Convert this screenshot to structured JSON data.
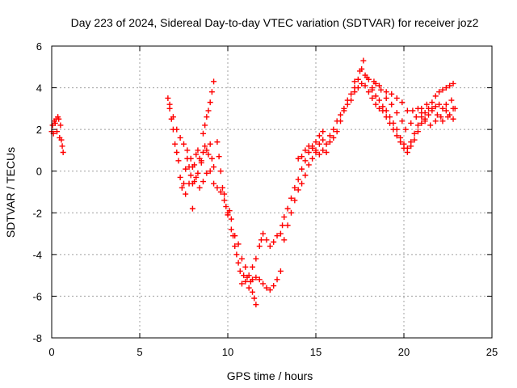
{
  "chart_data": {
    "type": "scatter",
    "title": "Day 223 of 2024, Sidereal Day-to-day VTEC variation (SDTVAR) for receiver joz2",
    "xlabel": "GPS time / hours",
    "ylabel": "SDTVAR / TECUs",
    "xlim": [
      0,
      25
    ],
    "ylim": [
      -8,
      6
    ],
    "x_ticks": [
      0,
      5,
      10,
      15,
      20,
      25
    ],
    "y_ticks": [
      -8,
      -6,
      -4,
      -2,
      0,
      2,
      4,
      6
    ],
    "grid": true,
    "marker": "+",
    "color": "#ff0000",
    "series": [
      {
        "name": "SDTVAR",
        "points": [
          [
            0.0,
            1.9
          ],
          [
            0.05,
            2.2
          ],
          [
            0.1,
            1.8
          ],
          [
            0.15,
            2.4
          ],
          [
            0.2,
            2.3
          ],
          [
            0.25,
            2.5
          ],
          [
            0.3,
            1.9
          ],
          [
            0.35,
            2.6
          ],
          [
            0.4,
            2.5
          ],
          [
            0.45,
            1.6
          ],
          [
            0.5,
            2.2
          ],
          [
            0.55,
            1.5
          ],
          [
            0.6,
            1.2
          ],
          [
            0.65,
            0.9
          ],
          [
            6.6,
            3.5
          ],
          [
            6.7,
            3.2
          ],
          [
            6.8,
            2.5
          ],
          [
            6.9,
            2.0
          ],
          [
            7.0,
            1.3
          ],
          [
            7.1,
            0.9
          ],
          [
            7.2,
            0.5
          ],
          [
            7.3,
            -0.3
          ],
          [
            7.4,
            -0.8
          ],
          [
            7.5,
            -0.6
          ],
          [
            7.6,
            0.1
          ],
          [
            7.7,
            0.6
          ],
          [
            7.8,
            0.2
          ],
          [
            7.9,
            -0.2
          ],
          [
            8.0,
            -0.6
          ],
          [
            8.1,
            0.3
          ],
          [
            8.2,
            0.8
          ],
          [
            8.3,
            1.0
          ],
          [
            8.4,
            0.6
          ],
          [
            8.5,
            0.4
          ],
          [
            8.6,
            0.9
          ],
          [
            8.7,
            1.2
          ],
          [
            8.8,
            1.0
          ],
          [
            8.9,
            0.8
          ],
          [
            9.0,
            1.3
          ],
          [
            9.1,
            0.6
          ],
          [
            9.2,
            0.2
          ],
          [
            6.7,
            3.0
          ],
          [
            6.9,
            2.6
          ],
          [
            7.1,
            2.0
          ],
          [
            7.3,
            1.6
          ],
          [
            7.5,
            1.3
          ],
          [
            7.7,
            1.0
          ],
          [
            7.9,
            0.6
          ],
          [
            8.0,
            0.2
          ],
          [
            8.2,
            -0.3
          ],
          [
            8.4,
            -0.8
          ],
          [
            8.6,
            -0.5
          ],
          [
            8.8,
            -0.1
          ],
          [
            9.0,
            0.0
          ],
          [
            9.2,
            -0.6
          ],
          [
            9.4,
            -0.8
          ],
          [
            7.6,
            -1.1
          ],
          [
            7.8,
            -0.6
          ],
          [
            8.0,
            -1.8
          ],
          [
            8.1,
            -0.5
          ],
          [
            8.3,
            -0.1
          ],
          [
            8.5,
            0.5
          ],
          [
            8.6,
            1.8
          ],
          [
            8.7,
            2.2
          ],
          [
            8.8,
            2.6
          ],
          [
            8.9,
            2.9
          ],
          [
            9.0,
            3.3
          ],
          [
            9.1,
            3.8
          ],
          [
            9.2,
            4.3
          ],
          [
            9.4,
            1.4
          ],
          [
            9.5,
            0.7
          ],
          [
            9.6,
            0.0
          ],
          [
            9.7,
            -0.8
          ],
          [
            9.8,
            -1.1
          ],
          [
            9.9,
            -1.7
          ],
          [
            10.0,
            -2.0
          ],
          [
            10.1,
            -1.9
          ],
          [
            10.2,
            -2.3
          ],
          [
            10.3,
            -3.1
          ],
          [
            10.4,
            -3.6
          ],
          [
            10.5,
            -4.0
          ],
          [
            10.6,
            -4.4
          ],
          [
            10.7,
            -4.8
          ],
          [
            10.8,
            -5.4
          ],
          [
            10.9,
            -5.0
          ],
          [
            11.0,
            -5.3
          ],
          [
            11.1,
            -5.1
          ],
          [
            11.2,
            -5.6
          ],
          [
            11.3,
            -5.3
          ],
          [
            11.4,
            -5.8
          ],
          [
            11.5,
            -6.1
          ],
          [
            11.6,
            -6.4
          ],
          [
            9.6,
            -1.0
          ],
          [
            9.8,
            -1.4
          ],
          [
            10.0,
            -2.1
          ],
          [
            10.2,
            -2.8
          ],
          [
            10.4,
            -3.1
          ],
          [
            10.6,
            -3.5
          ],
          [
            10.8,
            -4.2
          ],
          [
            11.0,
            -4.6
          ],
          [
            11.2,
            -5.0
          ],
          [
            11.4,
            -5.2
          ],
          [
            11.6,
            -5.1
          ],
          [
            11.8,
            -5.2
          ],
          [
            12.0,
            -5.4
          ],
          [
            12.2,
            -5.6
          ],
          [
            12.4,
            -5.7
          ],
          [
            12.6,
            -5.5
          ],
          [
            12.8,
            -5.2
          ],
          [
            13.0,
            -4.8
          ],
          [
            11.4,
            -4.6
          ],
          [
            11.6,
            -4.2
          ],
          [
            11.8,
            -3.6
          ],
          [
            11.9,
            -3.3
          ],
          [
            12.0,
            -3.0
          ],
          [
            12.2,
            -3.3
          ],
          [
            12.4,
            -3.6
          ],
          [
            12.6,
            -3.4
          ],
          [
            12.8,
            -3.1
          ],
          [
            13.0,
            -3.0
          ],
          [
            13.1,
            -2.6
          ],
          [
            13.2,
            -2.2
          ],
          [
            13.4,
            -1.8
          ],
          [
            13.6,
            -1.3
          ],
          [
            13.8,
            -0.8
          ],
          [
            14.0,
            -0.4
          ],
          [
            14.2,
            0.1
          ],
          [
            14.4,
            0.5
          ],
          [
            14.6,
            0.9
          ],
          [
            14.8,
            1.2
          ],
          [
            15.0,
            1.4
          ],
          [
            15.2,
            1.7
          ],
          [
            15.4,
            1.9
          ],
          [
            13.2,
            -3.3
          ],
          [
            13.4,
            -2.6
          ],
          [
            13.6,
            -2.0
          ],
          [
            13.8,
            -1.4
          ],
          [
            14.0,
            -0.9
          ],
          [
            14.2,
            -0.6
          ],
          [
            14.4,
            -0.2
          ],
          [
            14.6,
            0.3
          ],
          [
            14.8,
            0.6
          ],
          [
            15.0,
            1.0
          ],
          [
            14.0,
            0.6
          ],
          [
            14.2,
            0.7
          ],
          [
            14.4,
            1.0
          ],
          [
            14.6,
            1.2
          ],
          [
            14.8,
            1.1
          ],
          [
            15.0,
            0.9
          ],
          [
            15.2,
            1.3
          ],
          [
            15.4,
            1.5
          ],
          [
            15.6,
            1.3
          ],
          [
            15.8,
            1.7
          ],
          [
            16.0,
            2.0
          ],
          [
            16.2,
            2.4
          ],
          [
            16.4,
            2.7
          ],
          [
            16.6,
            3.0
          ],
          [
            16.8,
            3.4
          ],
          [
            17.0,
            3.7
          ],
          [
            17.2,
            4.0
          ],
          [
            17.4,
            4.4
          ],
          [
            17.6,
            4.9
          ],
          [
            17.7,
            5.3
          ],
          [
            17.8,
            4.6
          ],
          [
            18.0,
            4.4
          ],
          [
            18.2,
            4.0
          ],
          [
            18.4,
            3.6
          ],
          [
            18.6,
            3.4
          ],
          [
            18.8,
            3.1
          ],
          [
            19.0,
            2.9
          ],
          [
            19.2,
            2.6
          ],
          [
            19.4,
            2.3
          ],
          [
            19.6,
            2.0
          ],
          [
            19.8,
            1.6
          ],
          [
            20.0,
            1.3
          ],
          [
            20.2,
            1.1
          ],
          [
            20.4,
            1.4
          ],
          [
            20.6,
            1.8
          ],
          [
            20.8,
            2.2
          ],
          [
            21.0,
            2.6
          ],
          [
            21.2,
            2.8
          ],
          [
            21.4,
            3.0
          ],
          [
            21.6,
            3.3
          ],
          [
            21.8,
            3.6
          ],
          [
            22.0,
            3.8
          ],
          [
            22.2,
            3.9
          ],
          [
            22.4,
            4.0
          ],
          [
            22.6,
            4.1
          ],
          [
            22.8,
            4.2
          ],
          [
            15.2,
            0.8
          ],
          [
            15.4,
            1.0
          ],
          [
            15.6,
            0.9
          ],
          [
            15.8,
            1.4
          ],
          [
            16.0,
            1.6
          ],
          [
            16.2,
            1.9
          ],
          [
            16.4,
            2.4
          ],
          [
            16.6,
            2.9
          ],
          [
            16.8,
            3.2
          ],
          [
            17.0,
            3.4
          ],
          [
            17.2,
            3.8
          ],
          [
            17.4,
            4.0
          ],
          [
            17.6,
            4.2
          ],
          [
            17.8,
            4.1
          ],
          [
            18.0,
            3.8
          ],
          [
            18.2,
            3.5
          ],
          [
            18.4,
            3.2
          ],
          [
            18.6,
            3.0
          ],
          [
            18.8,
            2.9
          ],
          [
            19.0,
            2.6
          ],
          [
            19.2,
            2.3
          ],
          [
            19.4,
            2.0
          ],
          [
            19.6,
            1.7
          ],
          [
            19.8,
            1.4
          ],
          [
            20.0,
            1.1
          ],
          [
            20.2,
            0.9
          ],
          [
            20.4,
            1.2
          ],
          [
            20.6,
            1.5
          ],
          [
            20.8,
            1.9
          ],
          [
            21.0,
            2.3
          ],
          [
            21.2,
            2.5
          ],
          [
            21.4,
            2.7
          ],
          [
            21.6,
            2.9
          ],
          [
            21.8,
            3.1
          ],
          [
            22.0,
            3.2
          ],
          [
            22.2,
            3.0
          ],
          [
            22.4,
            2.9
          ],
          [
            22.6,
            2.7
          ],
          [
            22.8,
            2.5
          ],
          [
            17.2,
            4.3
          ],
          [
            17.5,
            4.8
          ],
          [
            17.9,
            4.5
          ],
          [
            18.3,
            4.3
          ],
          [
            18.6,
            4.1
          ],
          [
            19.0,
            3.8
          ],
          [
            19.3,
            3.7
          ],
          [
            19.6,
            3.5
          ],
          [
            19.9,
            3.3
          ],
          [
            20.2,
            2.9
          ],
          [
            20.5,
            2.9
          ],
          [
            20.8,
            3.0
          ],
          [
            21.0,
            2.8
          ],
          [
            21.2,
            2.4
          ],
          [
            21.5,
            2.2
          ],
          [
            21.8,
            2.4
          ],
          [
            22.1,
            2.6
          ],
          [
            22.4,
            3.2
          ],
          [
            22.7,
            3.4
          ],
          [
            22.9,
            3.0
          ],
          [
            18.2,
            3.9
          ],
          [
            18.4,
            4.2
          ],
          [
            18.7,
            3.9
          ],
          [
            19.0,
            3.5
          ],
          [
            19.3,
            3.2
          ],
          [
            19.6,
            2.8
          ],
          [
            19.9,
            2.4
          ],
          [
            20.1,
            2.0
          ],
          [
            20.4,
            2.3
          ],
          [
            20.7,
            2.6
          ],
          [
            21.0,
            3.0
          ],
          [
            21.3,
            3.2
          ],
          [
            21.6,
            3.0
          ],
          [
            21.9,
            2.7
          ],
          [
            22.2,
            2.4
          ],
          [
            22.5,
            2.6
          ],
          [
            22.8,
            3.0
          ]
        ]
      }
    ]
  }
}
